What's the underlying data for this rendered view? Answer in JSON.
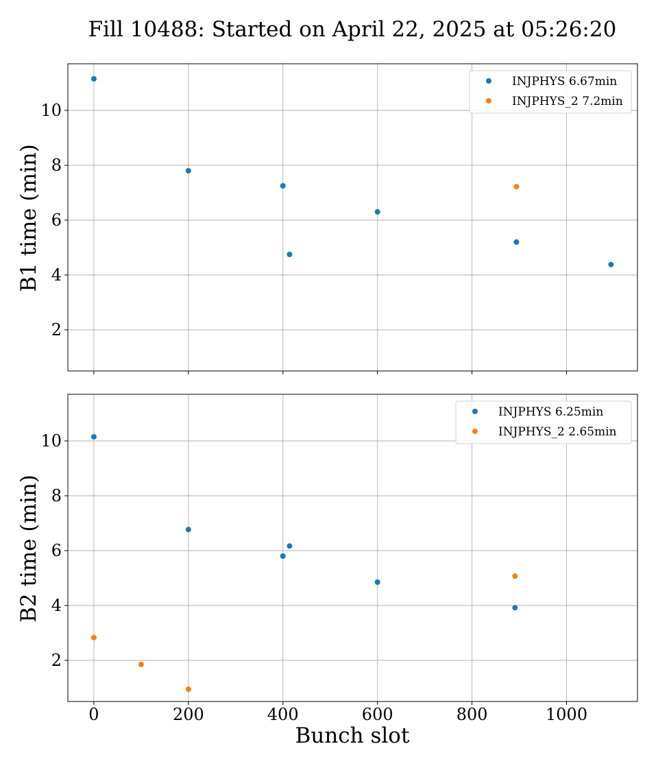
{
  "title": "Fill 10488: Started on April 22, 2025 at 05:26:20",
  "xlabel": "Bunch slot",
  "colors": {
    "series1": "#1f77b4",
    "series2": "#ff7f0e"
  },
  "chart_data": [
    {
      "type": "scatter",
      "ylabel": "B1 time (min)",
      "xlim": [
        -55,
        1150
      ],
      "ylim": [
        0.5,
        11.7
      ],
      "xticks": [
        0,
        200,
        400,
        600,
        800,
        1000
      ],
      "yticks": [
        2,
        4,
        6,
        8,
        10
      ],
      "xtick_labels_visible": false,
      "grid": true,
      "legend_position": "top-right",
      "series": [
        {
          "name": "INJPHYS 6.67min",
          "color": "#1f77b4",
          "x": [
            0,
            200,
            400,
            414,
            600,
            894,
            1094
          ],
          "y": [
            11.15,
            7.8,
            7.25,
            4.75,
            6.3,
            5.2,
            4.38
          ]
        },
        {
          "name": "INJPHYS_2 7.2min",
          "color": "#ff7f0e",
          "x": [
            894
          ],
          "y": [
            7.22
          ]
        }
      ]
    },
    {
      "type": "scatter",
      "ylabel": "B2 time (min)",
      "xlim": [
        -55,
        1150
      ],
      "ylim": [
        0.5,
        11.7
      ],
      "xticks": [
        0,
        200,
        400,
        600,
        800,
        1000
      ],
      "yticks": [
        2,
        4,
        6,
        8,
        10
      ],
      "xtick_labels_visible": true,
      "grid": true,
      "legend_position": "top-right",
      "series": [
        {
          "name": "INJPHYS 6.25min",
          "color": "#1f77b4",
          "x": [
            0,
            200,
            400,
            414,
            600,
            891
          ],
          "y": [
            10.15,
            6.77,
            5.8,
            6.17,
            4.85,
            3.92
          ]
        },
        {
          "name": "INJPHYS_2 2.65min",
          "color": "#ff7f0e",
          "x": [
            0,
            100,
            200,
            891
          ],
          "y": [
            2.83,
            1.85,
            0.95,
            5.07
          ]
        }
      ]
    }
  ]
}
